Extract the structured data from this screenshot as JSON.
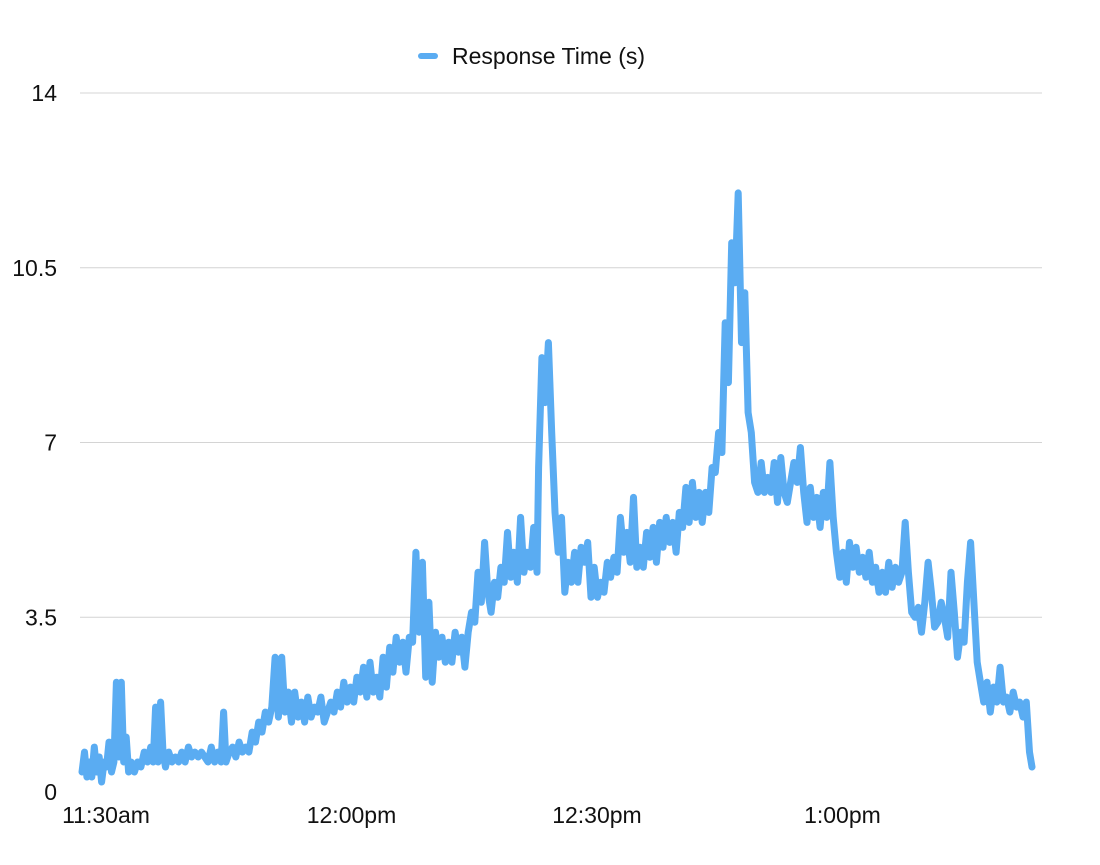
{
  "chart_data": {
    "type": "line",
    "title": "",
    "xlabel": "",
    "ylabel": "",
    "ylim": [
      0,
      14
    ],
    "yticks": [
      0,
      3.5,
      7,
      10.5,
      14
    ],
    "ytick_labels": [
      "0",
      "3.5",
      "7",
      "10.5",
      "14"
    ],
    "xlim": [
      "11:30am",
      "1:08pm"
    ],
    "xtick_labels": [
      {
        "label": "11:30am",
        "time_min": 0
      },
      {
        "label": "12:00pm",
        "time_min": 30
      },
      {
        "label": "12:30pm",
        "time_min": 60
      },
      {
        "label": "1:00pm",
        "time_min": 90
      }
    ],
    "grid": "horizontal",
    "legend_position": "top-center",
    "series": [
      {
        "name": "Response Time (s)",
        "color": "#5AACF2",
        "x_unit": "minutes after 11:30am",
        "points": [
          [
            0.0,
            0.4
          ],
          [
            0.3,
            0.8
          ],
          [
            0.6,
            0.3
          ],
          [
            0.9,
            0.6
          ],
          [
            1.2,
            0.3
          ],
          [
            1.5,
            0.9
          ],
          [
            1.8,
            0.4
          ],
          [
            2.1,
            0.7
          ],
          [
            2.4,
            0.2
          ],
          [
            2.7,
            0.6
          ],
          [
            3.0,
            0.5
          ],
          [
            3.3,
            1.0
          ],
          [
            3.6,
            0.4
          ],
          [
            3.9,
            0.6
          ],
          [
            4.2,
            2.2
          ],
          [
            4.5,
            0.7
          ],
          [
            4.8,
            2.2
          ],
          [
            5.1,
            0.6
          ],
          [
            5.4,
            1.1
          ],
          [
            5.7,
            0.4
          ],
          [
            6.0,
            0.6
          ],
          [
            6.4,
            0.4
          ],
          [
            6.8,
            0.6
          ],
          [
            7.2,
            0.5
          ],
          [
            7.6,
            0.8
          ],
          [
            8.0,
            0.6
          ],
          [
            8.4,
            0.9
          ],
          [
            8.7,
            0.6
          ],
          [
            9.0,
            1.7
          ],
          [
            9.3,
            0.6
          ],
          [
            9.6,
            1.8
          ],
          [
            9.9,
            0.8
          ],
          [
            10.2,
            0.5
          ],
          [
            10.6,
            0.8
          ],
          [
            11.0,
            0.6
          ],
          [
            11.4,
            0.7
          ],
          [
            11.8,
            0.6
          ],
          [
            12.2,
            0.8
          ],
          [
            12.6,
            0.6
          ],
          [
            13.0,
            0.9
          ],
          [
            13.4,
            0.7
          ],
          [
            13.8,
            0.8
          ],
          [
            14.2,
            0.7
          ],
          [
            14.6,
            0.8
          ],
          [
            15.0,
            0.7
          ],
          [
            15.4,
            0.6
          ],
          [
            15.8,
            0.9
          ],
          [
            16.2,
            0.6
          ],
          [
            16.6,
            0.8
          ],
          [
            17.0,
            0.6
          ],
          [
            17.3,
            1.6
          ],
          [
            17.6,
            0.6
          ],
          [
            18.0,
            0.8
          ],
          [
            18.4,
            0.9
          ],
          [
            18.8,
            0.7
          ],
          [
            19.2,
            1.0
          ],
          [
            19.6,
            0.8
          ],
          [
            20.0,
            0.9
          ],
          [
            20.4,
            0.8
          ],
          [
            20.8,
            1.2
          ],
          [
            21.2,
            1.0
          ],
          [
            21.6,
            1.4
          ],
          [
            22.0,
            1.2
          ],
          [
            22.4,
            1.6
          ],
          [
            22.8,
            1.4
          ],
          [
            23.2,
            1.7
          ],
          [
            23.6,
            2.7
          ],
          [
            24.0,
            1.5
          ],
          [
            24.4,
            2.7
          ],
          [
            24.8,
            1.6
          ],
          [
            25.2,
            2.0
          ],
          [
            25.6,
            1.4
          ],
          [
            26.0,
            2.0
          ],
          [
            26.4,
            1.5
          ],
          [
            26.8,
            1.8
          ],
          [
            27.2,
            1.4
          ],
          [
            27.6,
            1.9
          ],
          [
            28.0,
            1.5
          ],
          [
            28.4,
            1.7
          ],
          [
            28.8,
            1.6
          ],
          [
            29.2,
            1.9
          ],
          [
            29.6,
            1.4
          ],
          [
            30.0,
            1.6
          ],
          [
            30.4,
            1.8
          ],
          [
            30.8,
            1.6
          ],
          [
            31.2,
            2.0
          ],
          [
            31.6,
            1.7
          ],
          [
            32.0,
            2.2
          ],
          [
            32.4,
            1.8
          ],
          [
            32.8,
            2.1
          ],
          [
            33.2,
            1.8
          ],
          [
            33.6,
            2.3
          ],
          [
            34.0,
            2.0
          ],
          [
            34.4,
            2.5
          ],
          [
            34.8,
            1.9
          ],
          [
            35.2,
            2.6
          ],
          [
            35.6,
            2.0
          ],
          [
            36.0,
            2.3
          ],
          [
            36.4,
            1.9
          ],
          [
            36.8,
            2.7
          ],
          [
            37.2,
            2.1
          ],
          [
            37.6,
            2.9
          ],
          [
            38.0,
            2.4
          ],
          [
            38.4,
            3.1
          ],
          [
            38.8,
            2.6
          ],
          [
            39.2,
            3.0
          ],
          [
            39.6,
            2.4
          ],
          [
            40.0,
            3.1
          ],
          [
            40.4,
            3.0
          ],
          [
            40.8,
            4.8
          ],
          [
            41.2,
            3.2
          ],
          [
            41.6,
            4.6
          ],
          [
            42.0,
            2.3
          ],
          [
            42.4,
            3.8
          ],
          [
            42.8,
            2.2
          ],
          [
            43.2,
            3.2
          ],
          [
            43.6,
            2.7
          ],
          [
            44.0,
            3.1
          ],
          [
            44.4,
            2.6
          ],
          [
            44.8,
            3.0
          ],
          [
            45.2,
            2.6
          ],
          [
            45.6,
            3.2
          ],
          [
            46.0,
            2.8
          ],
          [
            46.4,
            3.1
          ],
          [
            46.8,
            2.5
          ],
          [
            47.2,
            3.2
          ],
          [
            47.6,
            3.6
          ],
          [
            48.0,
            3.4
          ],
          [
            48.4,
            4.4
          ],
          [
            48.8,
            3.8
          ],
          [
            49.2,
            5.0
          ],
          [
            49.6,
            4.0
          ],
          [
            50.0,
            3.6
          ],
          [
            50.4,
            4.2
          ],
          [
            50.8,
            3.9
          ],
          [
            51.2,
            4.5
          ],
          [
            51.6,
            4.2
          ],
          [
            52.0,
            5.2
          ],
          [
            52.4,
            4.3
          ],
          [
            52.8,
            4.8
          ],
          [
            53.2,
            4.2
          ],
          [
            53.6,
            5.5
          ],
          [
            54.0,
            4.4
          ],
          [
            54.4,
            4.8
          ],
          [
            54.8,
            4.5
          ],
          [
            55.2,
            5.3
          ],
          [
            55.6,
            4.4
          ],
          [
            55.8,
            6.5
          ],
          [
            56.2,
            8.7
          ],
          [
            56.6,
            7.8
          ],
          [
            57.0,
            9.0
          ],
          [
            57.4,
            7.2
          ],
          [
            57.8,
            5.6
          ],
          [
            58.2,
            4.8
          ],
          [
            58.6,
            5.5
          ],
          [
            59.0,
            4.0
          ],
          [
            59.4,
            4.6
          ],
          [
            59.8,
            4.2
          ],
          [
            60.2,
            4.8
          ],
          [
            60.6,
            4.2
          ],
          [
            61.0,
            4.9
          ],
          [
            61.4,
            4.6
          ],
          [
            61.8,
            5.0
          ],
          [
            62.2,
            3.9
          ],
          [
            62.6,
            4.5
          ],
          [
            63.0,
            3.9
          ],
          [
            63.4,
            4.2
          ],
          [
            63.8,
            4.0
          ],
          [
            64.2,
            4.6
          ],
          [
            64.6,
            4.3
          ],
          [
            65.0,
            4.7
          ],
          [
            65.4,
            4.4
          ],
          [
            65.8,
            5.5
          ],
          [
            66.2,
            4.8
          ],
          [
            66.6,
            5.2
          ],
          [
            67.0,
            4.6
          ],
          [
            67.4,
            5.9
          ],
          [
            67.8,
            4.5
          ],
          [
            68.2,
            4.9
          ],
          [
            68.6,
            4.5
          ],
          [
            69.0,
            5.2
          ],
          [
            69.4,
            4.7
          ],
          [
            69.8,
            5.3
          ],
          [
            70.2,
            4.6
          ],
          [
            70.6,
            5.4
          ],
          [
            71.0,
            4.9
          ],
          [
            71.4,
            5.5
          ],
          [
            71.8,
            5.0
          ],
          [
            72.2,
            5.4
          ],
          [
            72.6,
            4.8
          ],
          [
            73.0,
            5.6
          ],
          [
            73.4,
            5.3
          ],
          [
            73.8,
            6.1
          ],
          [
            74.2,
            5.4
          ],
          [
            74.6,
            6.2
          ],
          [
            75.0,
            5.5
          ],
          [
            75.4,
            6.0
          ],
          [
            75.8,
            5.4
          ],
          [
            76.2,
            6.0
          ],
          [
            76.6,
            5.6
          ],
          [
            77.0,
            6.5
          ],
          [
            77.4,
            6.4
          ],
          [
            77.8,
            7.2
          ],
          [
            78.2,
            6.8
          ],
          [
            78.6,
            9.4
          ],
          [
            79.0,
            8.2
          ],
          [
            79.4,
            11.0
          ],
          [
            79.8,
            10.2
          ],
          [
            80.2,
            12.0
          ],
          [
            80.6,
            9.0
          ],
          [
            81.0,
            10.0
          ],
          [
            81.4,
            7.6
          ],
          [
            81.8,
            7.2
          ],
          [
            82.2,
            6.2
          ],
          [
            82.6,
            6.0
          ],
          [
            83.0,
            6.6
          ],
          [
            83.4,
            6.0
          ],
          [
            83.8,
            6.3
          ],
          [
            84.2,
            6.0
          ],
          [
            84.6,
            6.6
          ],
          [
            85.0,
            5.8
          ],
          [
            85.4,
            6.7
          ],
          [
            85.8,
            6.0
          ],
          [
            86.2,
            5.8
          ],
          [
            86.6,
            6.2
          ],
          [
            87.0,
            6.6
          ],
          [
            87.4,
            6.2
          ],
          [
            87.8,
            6.9
          ],
          [
            88.2,
            6.0
          ],
          [
            88.6,
            5.4
          ],
          [
            89.0,
            6.1
          ],
          [
            89.4,
            5.5
          ],
          [
            89.8,
            5.9
          ],
          [
            90.2,
            5.3
          ],
          [
            90.6,
            6.0
          ],
          [
            91.0,
            5.5
          ],
          [
            91.4,
            6.6
          ],
          [
            91.8,
            5.5
          ],
          [
            92.2,
            4.8
          ],
          [
            92.6,
            4.3
          ],
          [
            93.0,
            4.8
          ],
          [
            93.4,
            4.2
          ],
          [
            93.8,
            5.0
          ],
          [
            94.2,
            4.5
          ],
          [
            94.6,
            4.9
          ],
          [
            95.0,
            4.4
          ],
          [
            95.4,
            4.7
          ],
          [
            95.8,
            4.3
          ],
          [
            96.2,
            4.8
          ],
          [
            96.6,
            4.2
          ],
          [
            97.0,
            4.5
          ],
          [
            97.4,
            4.0
          ],
          [
            97.8,
            4.4
          ],
          [
            98.2,
            4.0
          ],
          [
            98.6,
            4.6
          ],
          [
            99.0,
            4.1
          ],
          [
            99.4,
            4.5
          ],
          [
            99.8,
            4.2
          ],
          [
            100.2,
            4.4
          ],
          [
            100.6,
            5.4
          ],
          [
            101.0,
            4.4
          ],
          [
            101.4,
            3.6
          ],
          [
            101.8,
            3.5
          ],
          [
            102.2,
            3.7
          ],
          [
            102.6,
            3.2
          ],
          [
            103.0,
            3.8
          ],
          [
            103.4,
            4.6
          ],
          [
            103.8,
            4.0
          ],
          [
            104.2,
            3.3
          ],
          [
            104.6,
            3.4
          ],
          [
            105.0,
            3.8
          ],
          [
            105.4,
            3.5
          ],
          [
            105.8,
            3.1
          ],
          [
            106.2,
            4.4
          ],
          [
            106.6,
            3.6
          ],
          [
            107.0,
            2.7
          ],
          [
            107.4,
            3.2
          ],
          [
            107.8,
            3.0
          ],
          [
            108.2,
            4.2
          ],
          [
            108.6,
            5.0
          ],
          [
            109.0,
            3.8
          ],
          [
            109.4,
            2.6
          ],
          [
            109.8,
            2.2
          ],
          [
            110.2,
            1.8
          ],
          [
            110.6,
            2.2
          ],
          [
            111.0,
            1.6
          ],
          [
            111.4,
            2.1
          ],
          [
            111.8,
            1.8
          ],
          [
            112.2,
            2.5
          ],
          [
            112.6,
            1.8
          ],
          [
            113.0,
            1.9
          ],
          [
            113.4,
            1.6
          ],
          [
            113.8,
            2.0
          ],
          [
            114.2,
            1.7
          ],
          [
            114.6,
            1.8
          ],
          [
            115.0,
            1.5
          ],
          [
            115.4,
            1.8
          ],
          [
            115.8,
            0.8
          ],
          [
            116.1,
            0.5
          ]
        ]
      }
    ]
  }
}
